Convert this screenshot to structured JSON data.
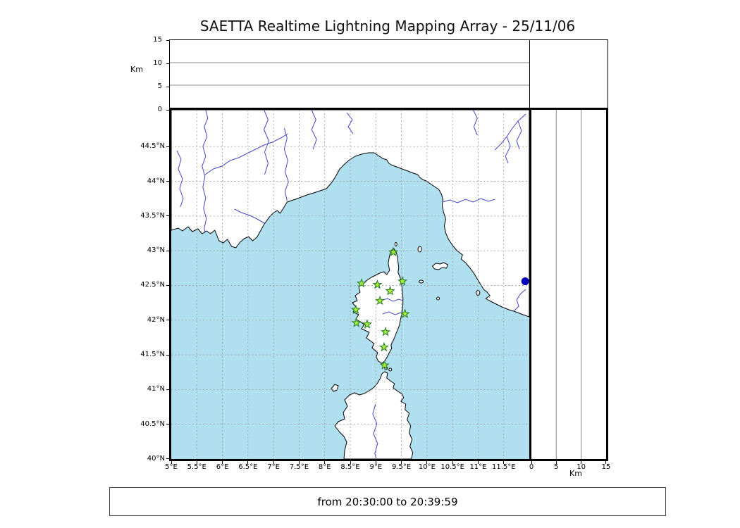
{
  "title": "SAETTA Realtime Lightning Mapping Array - 25/11/06",
  "footer": {
    "time_range": "from 20:30:00 to 20:39:59"
  },
  "axes": {
    "km_label": "Km",
    "lon_ticks": [
      "5°E",
      "5.5°E",
      "6°E",
      "6.5°E",
      "7°E",
      "7.5°E",
      "8°E",
      "8.5°E",
      "9°E",
      "9.5°E",
      "10°E",
      "10.5°E",
      "11°E",
      "11.5°E"
    ],
    "lat_ticks": [
      "44.5°N",
      "44°N",
      "43.5°N",
      "43°N",
      "42.5°N",
      "42°N",
      "41.5°N",
      "41°N",
      "40.5°N",
      "40°N"
    ],
    "alt_ticks_left": [
      "15",
      "10",
      "5",
      "0"
    ],
    "alt_ticks_bottom": [
      "0",
      "5",
      "10",
      "15"
    ]
  },
  "colors": {
    "sea": "#b0dff0",
    "land": "#ffffff",
    "coast": "#000000",
    "river": "#4646c8",
    "grid": "#999999",
    "station_fill": "#aaf03a",
    "station_edge": "#1f7a1f",
    "event": "#0000bb"
  },
  "chart_data": {
    "type": "scatter",
    "title": "SAETTA Realtime Lightning Mapping Array - 25/11/06",
    "time_range": "from 20:30:00 to 20:39:59",
    "map_panel": {
      "xlabel_unit": "longitude",
      "ylabel_unit": "latitude",
      "lon_range": [
        5.0,
        12.0
      ],
      "lat_range": [
        40.0,
        45.03
      ],
      "grid": true
    },
    "altitude_longitude_panel": {
      "ylabel": "Km",
      "alt_range_km": [
        0,
        15
      ],
      "gridlines_km": [
        5,
        10
      ],
      "points": []
    },
    "altitude_latitude_panel": {
      "xlabel": "Km",
      "alt_range_km": [
        0,
        15
      ],
      "gridlines_km": [
        5,
        10
      ],
      "points": []
    },
    "stations": [
      {
        "lon": 9.34,
        "lat": 42.98
      },
      {
        "lon": 8.72,
        "lat": 42.53
      },
      {
        "lon": 9.03,
        "lat": 42.51
      },
      {
        "lon": 9.52,
        "lat": 42.56
      },
      {
        "lon": 9.28,
        "lat": 42.42
      },
      {
        "lon": 9.08,
        "lat": 42.28
      },
      {
        "lon": 8.61,
        "lat": 42.15
      },
      {
        "lon": 9.57,
        "lat": 42.09
      },
      {
        "lon": 8.62,
        "lat": 41.96
      },
      {
        "lon": 8.83,
        "lat": 41.94
      },
      {
        "lon": 9.19,
        "lat": 41.83
      },
      {
        "lon": 9.16,
        "lat": 41.61
      },
      {
        "lon": 9.17,
        "lat": 41.35
      }
    ],
    "events": [
      {
        "lon": 11.92,
        "lat": 42.56,
        "color": "#0000bb"
      }
    ]
  }
}
